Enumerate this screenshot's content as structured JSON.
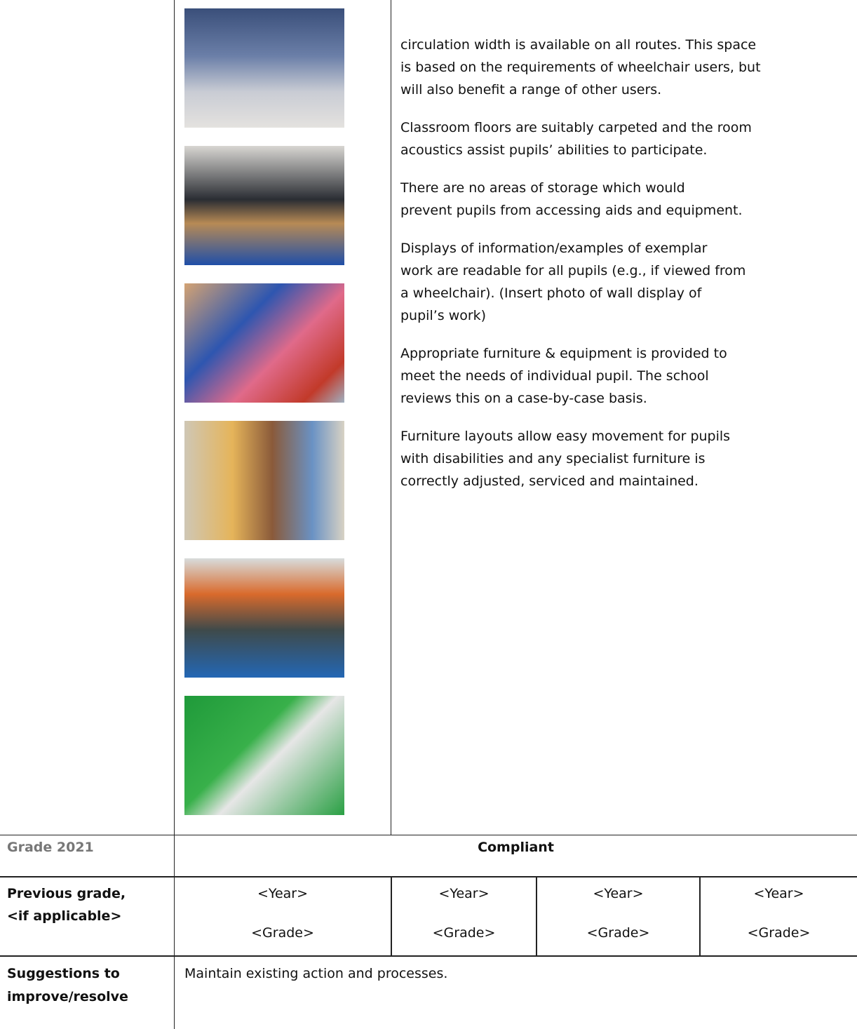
{
  "description": {
    "paragraphs": [
      [
        "circulation width is available on all routes. This space",
        "is based on the requirements of wheelchair users, but",
        "will also benefit a range of other users."
      ],
      [
        "Classroom floors are suitably carpeted and the room",
        "acoustics assist pupils’ abilities to participate."
      ],
      [
        "There are no areas of storage which would",
        "prevent pupils from accessing aids and equipment."
      ],
      [
        "Displays of information/examples of exemplar",
        "work are readable for all pupils (e.g., if viewed from",
        "a wheelchair). (Insert photo of wall display of",
        "pupil’s work)"
      ],
      [
        "Appropriate furniture & equipment is provided to",
        "meet the needs of individual pupil. The school",
        "reviews this on a case-by-case basis."
      ],
      [
        "Furniture layouts allow easy movement for pupils",
        "with disabilities and any specialist furniture is",
        "correctly adjusted, serviced and maintained."
      ]
    ]
  },
  "grade": {
    "label": "Grade 2021",
    "value": "Compliant"
  },
  "previous_grade": {
    "label": [
      "Previous grade,",
      "<if applicable>"
    ],
    "entries": [
      {
        "year": "<Year>",
        "grade": "<Grade>"
      },
      {
        "year": "<Year>",
        "grade": "<Grade>"
      },
      {
        "year": "<Year>",
        "grade": "<Grade>"
      },
      {
        "year": "<Year>",
        "grade": "<Grade>"
      }
    ]
  },
  "suggestions": {
    "label": [
      "Suggestions to",
      "improve/resolve"
    ],
    "text": "Maintain existing action and processes."
  }
}
